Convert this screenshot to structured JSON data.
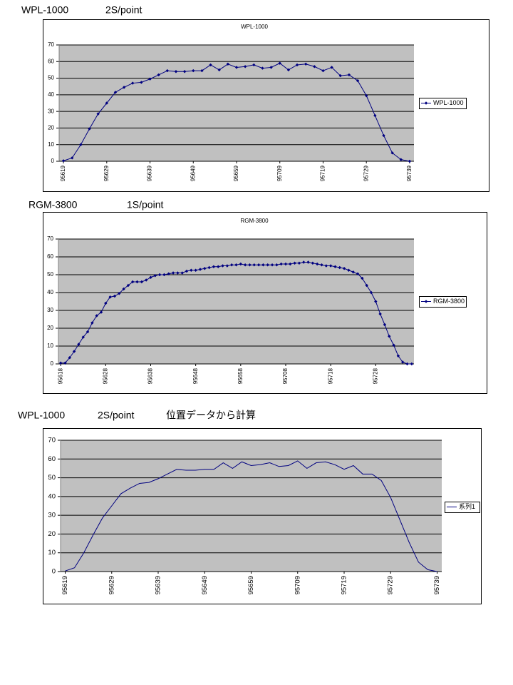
{
  "chart_data": [
    {
      "type": "line",
      "headings": [
        "WPL-1000",
        "2S/point"
      ],
      "title": "WPL-1000",
      "marker": "diamond",
      "categories": [
        "95619",
        null,
        null,
        null,
        null,
        "95629",
        null,
        null,
        null,
        null,
        "95639",
        null,
        null,
        null,
        null,
        "95649",
        null,
        null,
        null,
        null,
        "95659",
        null,
        null,
        null,
        null,
        "95709",
        null,
        null,
        null,
        null,
        "95719",
        null,
        null,
        null,
        null,
        "95729",
        null,
        null,
        null,
        null,
        "95739"
      ],
      "series": [
        {
          "name": "WPL-1000",
          "color": "#000080",
          "values": [
            0.3,
            2,
            10,
            19.5,
            28.5,
            35,
            41.5,
            44.5,
            47,
            47.5,
            49.5,
            52,
            54.5,
            54,
            54,
            54.5,
            54.5,
            58,
            55,
            58.5,
            56.5,
            57,
            58,
            56,
            56.5,
            59,
            55,
            58,
            58.5,
            57,
            54.5,
            56.5,
            51.5,
            52,
            48.5,
            39.5,
            27.5,
            15.5,
            5,
            1,
            0
          ]
        }
      ],
      "ylim": [
        0,
        70
      ],
      "yticks": [
        0,
        10,
        20,
        30,
        40,
        50,
        60,
        70
      ],
      "grid": true
    },
    {
      "type": "line",
      "headings": [
        "RGM-3800",
        "1S/point"
      ],
      "title": "RGM-3800",
      "marker": "diamond",
      "categories": [
        "95618",
        null,
        null,
        null,
        null,
        null,
        null,
        null,
        null,
        null,
        "95628",
        null,
        null,
        null,
        null,
        null,
        null,
        null,
        null,
        null,
        "95638",
        null,
        null,
        null,
        null,
        null,
        null,
        null,
        null,
        null,
        "95648",
        null,
        null,
        null,
        null,
        null,
        null,
        null,
        null,
        null,
        "95658",
        null,
        null,
        null,
        null,
        null,
        null,
        null,
        null,
        null,
        "95708",
        null,
        null,
        null,
        null,
        null,
        null,
        null,
        null,
        null,
        "95718",
        null,
        null,
        null,
        null,
        null,
        null,
        null,
        null,
        null,
        "95728",
        null,
        null,
        null,
        null,
        null,
        null,
        null,
        null
      ],
      "series": [
        {
          "name": "RGM-3800",
          "color": "#000080",
          "values": [
            0.5,
            0.5,
            3.5,
            7,
            11,
            15,
            18,
            23,
            27,
            29,
            34,
            37.5,
            38,
            39.5,
            42,
            44,
            46,
            46,
            46,
            47,
            48.5,
            49.5,
            50,
            50,
            50.5,
            51,
            51,
            51,
            52,
            52.5,
            52.5,
            53,
            53.5,
            54,
            54.5,
            54.5,
            55,
            55,
            55.5,
            55.5,
            56,
            55.5,
            55.5,
            55.5,
            55.5,
            55.5,
            55.5,
            55.5,
            55.5,
            56,
            56,
            56,
            56.5,
            56.5,
            57,
            57,
            56.5,
            56,
            55.5,
            55,
            55,
            54.5,
            54,
            53.5,
            52.5,
            51.5,
            50.5,
            48,
            44,
            40,
            35,
            28,
            22,
            15.5,
            10.5,
            4.5,
            1,
            0,
            0
          ]
        }
      ],
      "ylim": [
        0,
        70
      ],
      "yticks": [
        0,
        10,
        20,
        30,
        40,
        50,
        60,
        70
      ],
      "grid": true
    },
    {
      "type": "line",
      "headings": [
        "WPL-1000",
        "2S/point",
        "位置データから計算"
      ],
      "marker": "none",
      "categories": [
        "95619",
        null,
        null,
        null,
        null,
        "95629",
        null,
        null,
        null,
        null,
        "95639",
        null,
        null,
        null,
        null,
        "95649",
        null,
        null,
        null,
        null,
        "95659",
        null,
        null,
        null,
        null,
        "95709",
        null,
        null,
        null,
        null,
        "95719",
        null,
        null,
        null,
        null,
        "95729",
        null,
        null,
        null,
        null,
        "95739"
      ],
      "series": [
        {
          "name": "系列1",
          "color": "#000080",
          "values": [
            0.3,
            2,
            10,
            19.5,
            28.5,
            35,
            41.5,
            44.5,
            47,
            47.5,
            49.5,
            52,
            54.5,
            54,
            54,
            54.5,
            54.5,
            58,
            55,
            58.5,
            56.5,
            57,
            58,
            56,
            56.5,
            59,
            55,
            58,
            58.5,
            57,
            54.5,
            56.5,
            52,
            52,
            48.5,
            39.5,
            27.5,
            15.5,
            5,
            1,
            0
          ]
        }
      ],
      "ylim": [
        0,
        70
      ],
      "yticks": [
        0,
        10,
        20,
        30,
        40,
        50,
        60,
        70
      ],
      "grid": true
    }
  ]
}
